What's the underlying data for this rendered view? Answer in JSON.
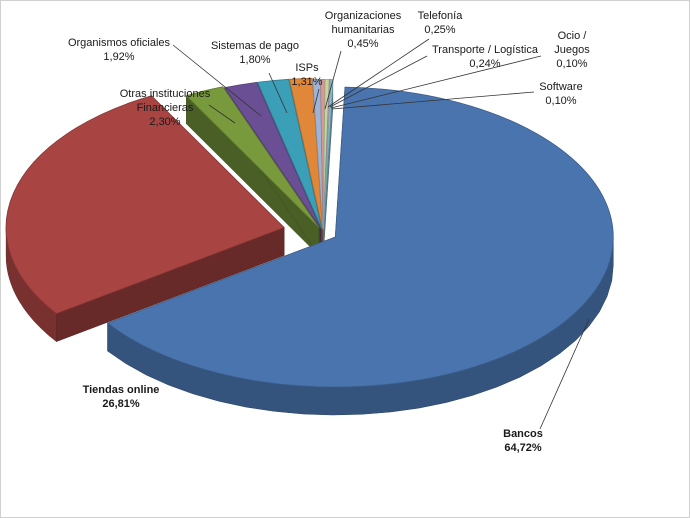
{
  "chart_data": {
    "type": "pie",
    "title": "",
    "style": "3d-exploded",
    "legend": "none",
    "categories": [
      "Bancos",
      "Tiendas online",
      "Otras instituciones Financieras",
      "Organismos oficiales",
      "Sistemas de pago",
      "ISPs",
      "Organizaciones humanitarias",
      "Telefonía",
      "Transporte / Logística",
      "Ocio / Juegos",
      "Software"
    ],
    "values": [
      64.72,
      26.81,
      2.3,
      1.92,
      1.8,
      1.31,
      0.45,
      0.25,
      0.24,
      0.1,
      0.1
    ],
    "value_labels": [
      "64,72%",
      "26,81%",
      "2,30%",
      "1,92%",
      "1,80%",
      "1,31%",
      "0,45%",
      "0,25%",
      "0,24%",
      "0,10%",
      "0,10%"
    ],
    "label_lines": [
      [
        "Bancos"
      ],
      [
        "Tiendas online"
      ],
      [
        "Otras instituciones",
        "Financieras"
      ],
      [
        "Organismos oficiales"
      ],
      [
        "Sistemas de pago"
      ],
      [
        "ISPs"
      ],
      [
        "Organizaciones",
        "humanitarias"
      ],
      [
        "Telefonía"
      ],
      [
        "Transporte / Logística"
      ],
      [
        "Ocio /",
        "Juegos"
      ],
      [
        "Software"
      ]
    ],
    "colors": [
      "#4a74ad",
      "#a84442",
      "#78993c",
      "#6a4f94",
      "#3b9fb8",
      "#e0873a",
      "#9eb4d6",
      "#d99896",
      "#c3d69b",
      "#b2a3c7",
      "#93cddd"
    ],
    "bold_labels": [
      "Bancos",
      "Tiendas online"
    ]
  }
}
